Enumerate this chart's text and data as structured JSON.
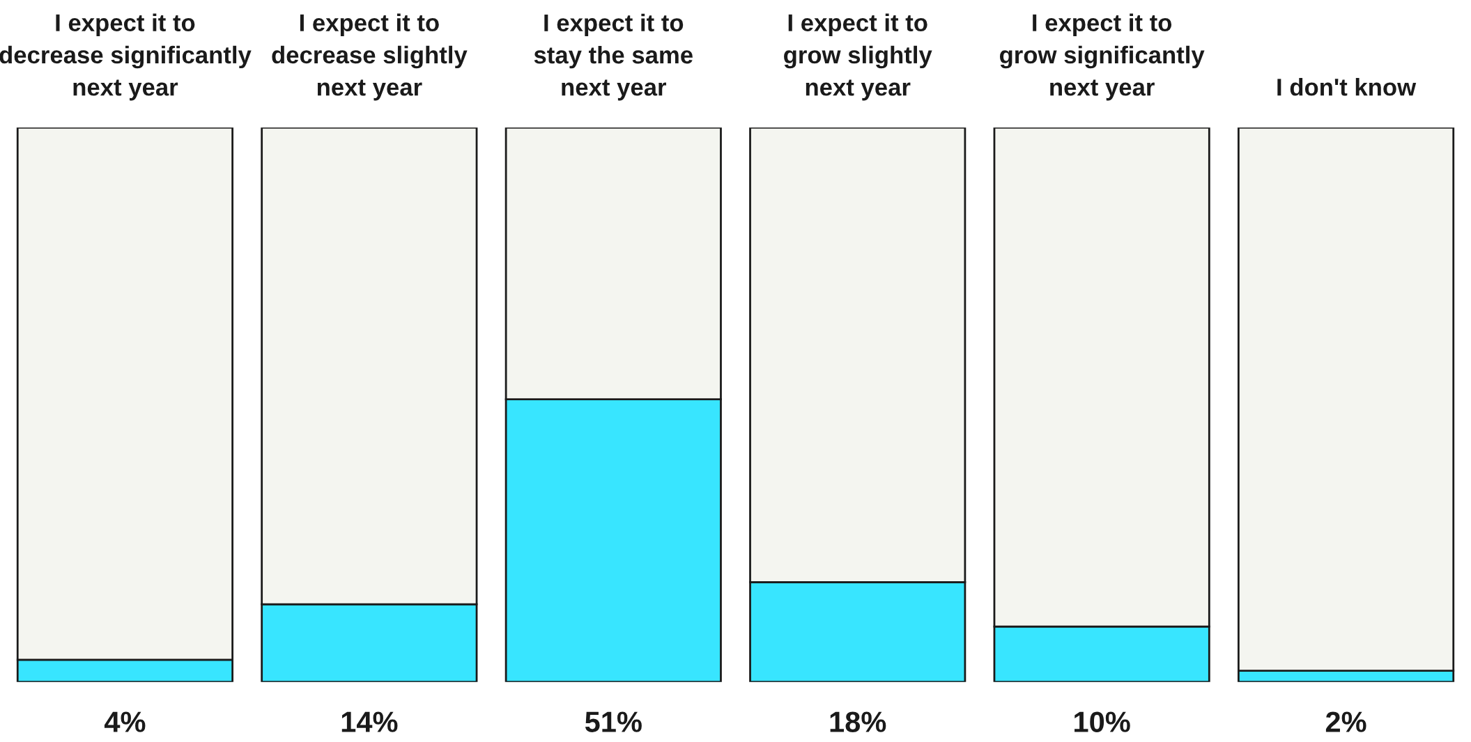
{
  "chart_data": {
    "type": "bar",
    "stacked": true,
    "tick_labels": "x",
    "categories": [
      "I expect it to\ndecrease significantly\nnext year",
      "I expect it to\ndecrease slightly\nnext year",
      "I expect it to\nstay the same\nnext year",
      "I expect it to\ngrow slightly\nnext year",
      "I expect it to\ngrow significantly\nnext year",
      "I don't know"
    ],
    "series": [
      {
        "color": "#38e5ff",
        "values": [
          4,
          14,
          51,
          18,
          10,
          2
        ],
        "value_labels": [
          "4%",
          "14%",
          "51%",
          "18%",
          "10%",
          "2%"
        ]
      },
      {
        "color": "#f4f5f0",
        "values": [
          96,
          86,
          49,
          82,
          90,
          98
        ]
      }
    ]
  }
}
